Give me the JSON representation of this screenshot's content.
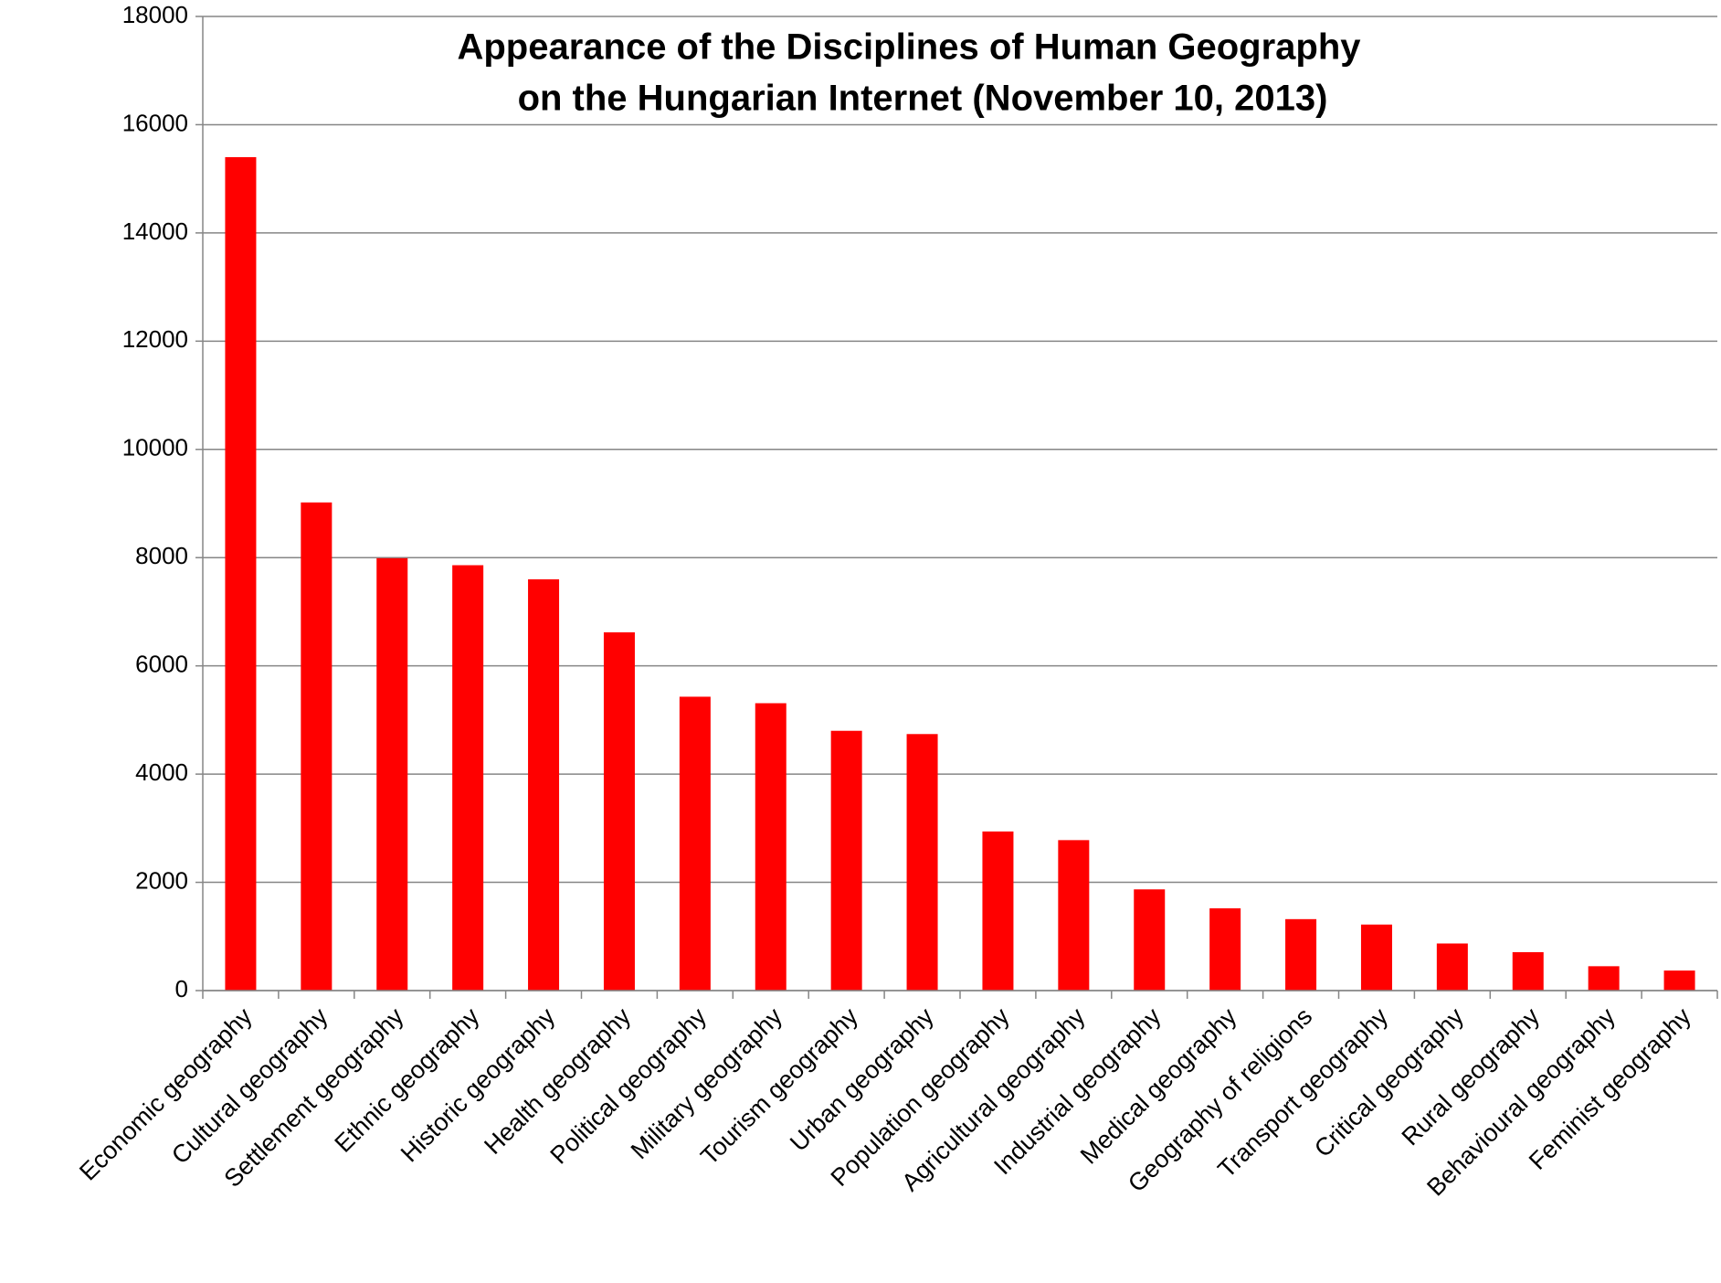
{
  "chart_data": {
    "type": "bar",
    "title": [
      "Appearance of the Disciplines of Human Geography",
      "on the Hungarian Internet (November 10, 2013)"
    ],
    "categories": [
      "Economic geography",
      "Cultural geography",
      "Settlement geography",
      "Ethnic geography",
      "Historic geography",
      "Health geography",
      "Political geography",
      "Military geography",
      "Tourism geography",
      "Urban geography",
      "Population geography",
      "Agricultural geography",
      "Industrial geography",
      "Medical geography",
      "Geography of religions",
      "Transport geography",
      "Critical geography",
      "Rural geography",
      "Behavioural geography",
      "Feminist geography"
    ],
    "values": [
      15400,
      9020,
      7990,
      7860,
      7600,
      6620,
      5430,
      5310,
      4800,
      4740,
      2940,
      2780,
      1870,
      1520,
      1320,
      1220,
      870,
      710,
      450,
      370
    ],
    "color": "#ff0000",
    "ylim": [
      0,
      18000
    ],
    "yticks": [
      0,
      2000,
      4000,
      6000,
      8000,
      10000,
      12000,
      14000,
      16000,
      18000
    ],
    "grid": true
  }
}
